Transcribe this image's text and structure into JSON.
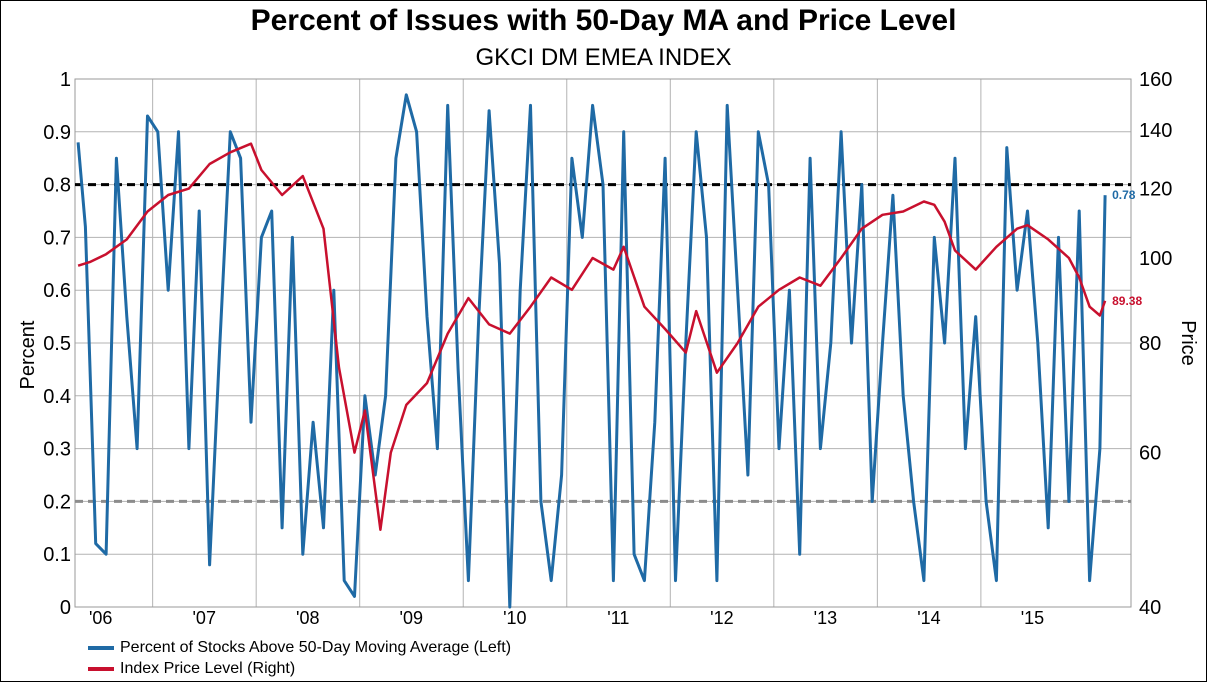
{
  "chart_data": {
    "type": "line",
    "title": "Percent of Issues with 50-Day MA and Price Level",
    "subtitle": "GKCI DM EMEA INDEX",
    "ylabel_left": "Percent",
    "ylabel_right": "Price",
    "xlim": [
      2005.8,
      2016.0
    ],
    "ylim_left": [
      0,
      1
    ],
    "ylim_right_log": [
      40,
      160
    ],
    "yticks_left": [
      "0",
      "0.1",
      "0.2",
      "0.3",
      "0.4",
      "0.5",
      "0.6",
      "0.7",
      "0.8",
      "0.9",
      "1"
    ],
    "yticks_right": [
      "40",
      "60",
      "80",
      "100",
      "120",
      "140",
      "160"
    ],
    "ytick_values_right": [
      40,
      60,
      80,
      100,
      120,
      140,
      160
    ],
    "xticks": [
      {
        "label": "'06",
        "x": 2006.0
      },
      {
        "label": "'07",
        "x": 2007.0
      },
      {
        "label": "'08",
        "x": 2008.0
      },
      {
        "label": "'09",
        "x": 2009.0
      },
      {
        "label": "'10",
        "x": 2010.0
      },
      {
        "label": "'11",
        "x": 2011.0
      },
      {
        "label": "'12",
        "x": 2012.0
      },
      {
        "label": "'13",
        "x": 2013.0
      },
      {
        "label": "'14",
        "x": 2014.0
      },
      {
        "label": "'15",
        "x": 2015.0
      }
    ],
    "reference_lines": [
      {
        "value": 0.8,
        "axis": "left",
        "color": "#000000",
        "style": "dashed"
      },
      {
        "value": 0.2,
        "axis": "left",
        "color": "#8c8c8c",
        "style": "dashed"
      }
    ],
    "grid": "horizontal and vertical",
    "legend_position": "bottom-left",
    "series": [
      {
        "name": "Percent of Stocks Above 50-Day Moving Average  (Left)",
        "axis": "left",
        "color": "#1f6aa5",
        "last_label": "0.78",
        "x": [
          2005.83,
          2005.9,
          2006.0,
          2006.1,
          2006.2,
          2006.3,
          2006.4,
          2006.5,
          2006.6,
          2006.7,
          2006.8,
          2006.9,
          2007.0,
          2007.1,
          2007.2,
          2007.3,
          2007.4,
          2007.5,
          2007.6,
          2007.7,
          2007.8,
          2007.9,
          2008.0,
          2008.1,
          2008.2,
          2008.3,
          2008.4,
          2008.5,
          2008.6,
          2008.7,
          2008.8,
          2008.9,
          2009.0,
          2009.1,
          2009.2,
          2009.3,
          2009.4,
          2009.5,
          2009.6,
          2009.7,
          2009.8,
          2009.9,
          2010.0,
          2010.1,
          2010.2,
          2010.3,
          2010.4,
          2010.5,
          2010.6,
          2010.7,
          2010.8,
          2010.9,
          2011.0,
          2011.1,
          2011.2,
          2011.3,
          2011.4,
          2011.5,
          2011.6,
          2011.7,
          2011.8,
          2011.9,
          2012.0,
          2012.1,
          2012.2,
          2012.3,
          2012.4,
          2012.5,
          2012.6,
          2012.7,
          2012.8,
          2012.9,
          2013.0,
          2013.1,
          2013.2,
          2013.3,
          2013.4,
          2013.5,
          2013.6,
          2013.7,
          2013.8,
          2013.9,
          2014.0,
          2014.1,
          2014.2,
          2014.3,
          2014.4,
          2014.5,
          2014.6,
          2014.7,
          2014.8,
          2014.9,
          2015.0,
          2015.1,
          2015.2,
          2015.3,
          2015.4,
          2015.5,
          2015.6,
          2015.7,
          2015.75
        ],
        "y": [
          0.88,
          0.72,
          0.12,
          0.1,
          0.85,
          0.55,
          0.3,
          0.93,
          0.9,
          0.6,
          0.9,
          0.3,
          0.75,
          0.08,
          0.5,
          0.9,
          0.85,
          0.35,
          0.7,
          0.75,
          0.15,
          0.7,
          0.1,
          0.35,
          0.15,
          0.6,
          0.05,
          0.02,
          0.4,
          0.25,
          0.4,
          0.85,
          0.97,
          0.9,
          0.55,
          0.3,
          0.95,
          0.45,
          0.05,
          0.55,
          0.94,
          0.65,
          0.0,
          0.6,
          0.95,
          0.2,
          0.05,
          0.25,
          0.85,
          0.7,
          0.95,
          0.8,
          0.05,
          0.9,
          0.1,
          0.05,
          0.35,
          0.85,
          0.05,
          0.5,
          0.9,
          0.7,
          0.05,
          0.95,
          0.6,
          0.25,
          0.9,
          0.8,
          0.3,
          0.6,
          0.1,
          0.85,
          0.3,
          0.5,
          0.9,
          0.5,
          0.8,
          0.2,
          0.5,
          0.78,
          0.4,
          0.2,
          0.05,
          0.7,
          0.5,
          0.85,
          0.3,
          0.55,
          0.2,
          0.05,
          0.87,
          0.6,
          0.75,
          0.5,
          0.15,
          0.7,
          0.2,
          0.75,
          0.05,
          0.3,
          0.78
        ]
      },
      {
        "name": "Index Price Level  (Right)",
        "axis": "right",
        "color": "#c8102e",
        "last_label": "89.38",
        "x": [
          2005.83,
          2005.95,
          2006.1,
          2006.3,
          2006.5,
          2006.7,
          2006.9,
          2007.1,
          2007.3,
          2007.5,
          2007.6,
          2007.8,
          2008.0,
          2008.2,
          2008.35,
          2008.5,
          2008.6,
          2008.75,
          2008.85,
          2009.0,
          2009.2,
          2009.4,
          2009.6,
          2009.8,
          2010.0,
          2010.2,
          2010.4,
          2010.6,
          2010.8,
          2011.0,
          2011.1,
          2011.3,
          2011.5,
          2011.7,
          2011.8,
          2012.0,
          2012.2,
          2012.4,
          2012.6,
          2012.8,
          2013.0,
          2013.2,
          2013.4,
          2013.6,
          2013.8,
          2014.0,
          2014.1,
          2014.2,
          2014.3,
          2014.5,
          2014.7,
          2014.9,
          2015.0,
          2015.2,
          2015.4,
          2015.5,
          2015.6,
          2015.7,
          2015.75
        ],
        "y": [
          98,
          99,
          101,
          105,
          113,
          118,
          120,
          128,
          132,
          135,
          126,
          118,
          124,
          108,
          75,
          60,
          67,
          49,
          60,
          68,
          72,
          82,
          90,
          84,
          82,
          88,
          95,
          92,
          100,
          97,
          103,
          88,
          83,
          78,
          87,
          74,
          80,
          88,
          92,
          95,
          93,
          100,
          108,
          112,
          113,
          116,
          115,
          110,
          102,
          97,
          103,
          108,
          109,
          105,
          100,
          95,
          88,
          86,
          89.38
        ]
      }
    ]
  }
}
